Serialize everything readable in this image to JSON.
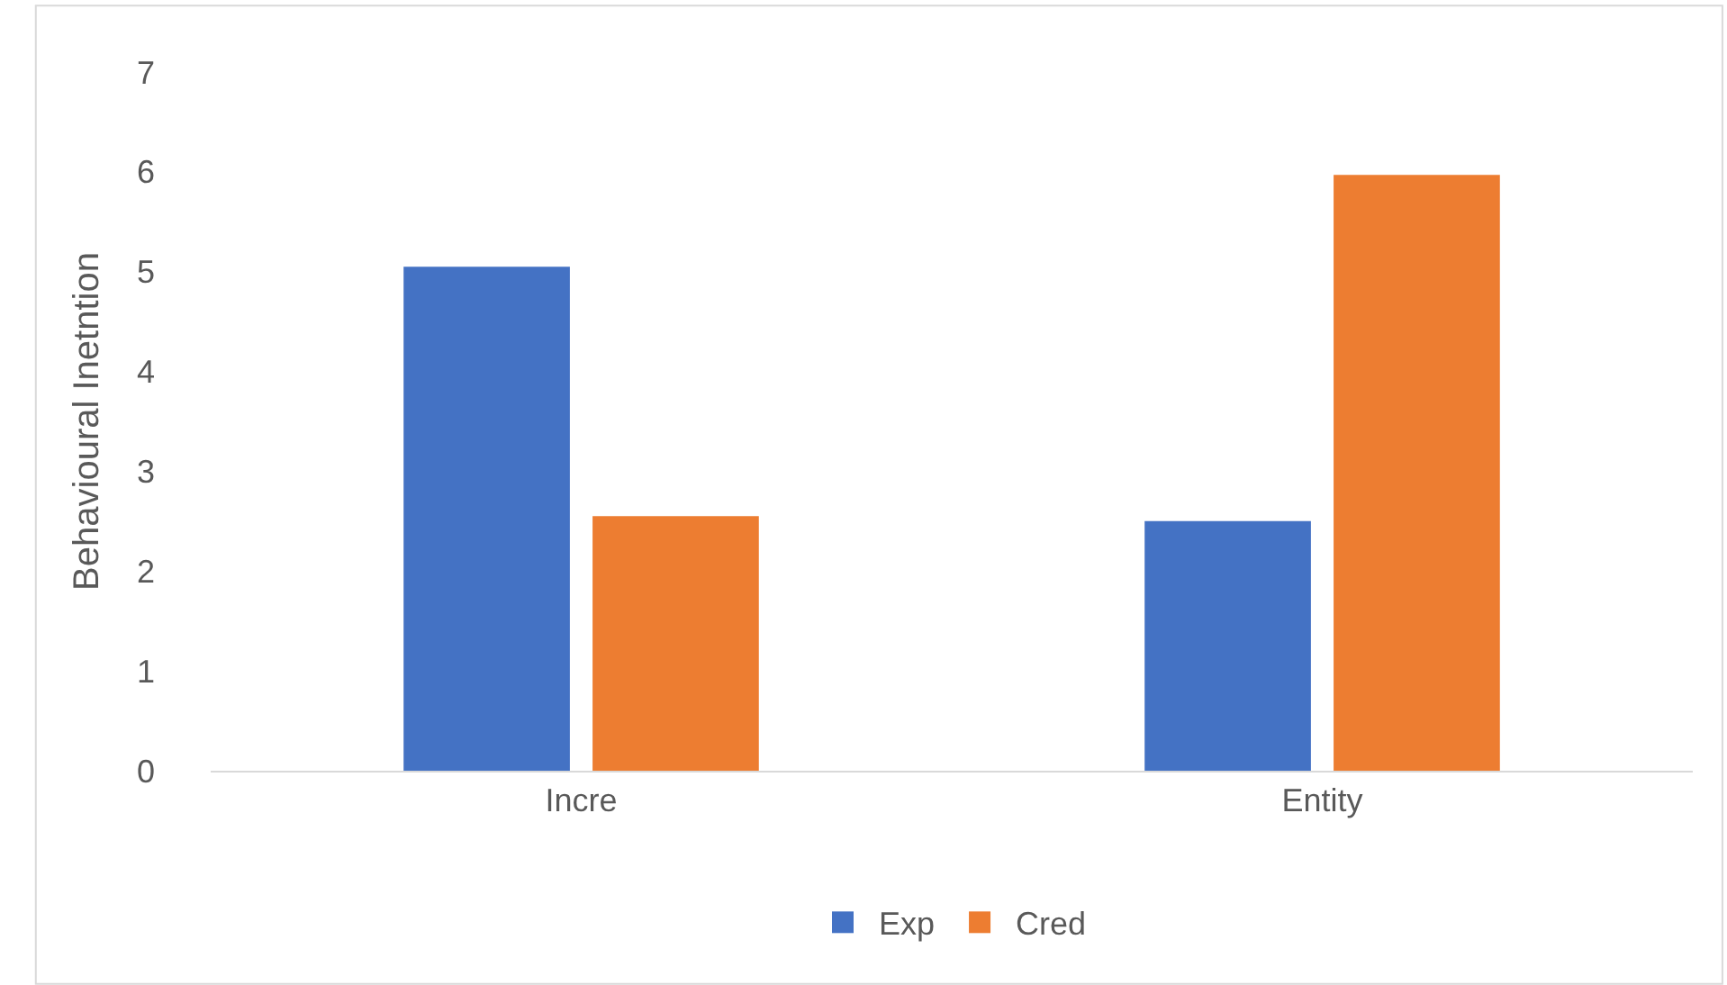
{
  "chart_data": {
    "type": "bar",
    "ylabel": "Behavioural Inetntion",
    "categories": [
      "Incre",
      "Entity"
    ],
    "series": [
      {
        "name": "Exp",
        "color": "#4472c4",
        "values": [
          5.05,
          2.5
        ]
      },
      {
        "name": "Cred",
        "color": "#ed7d31",
        "values": [
          2.55,
          5.97
        ]
      }
    ],
    "ylim": [
      0,
      7
    ],
    "yticks": [
      0,
      1,
      2,
      3,
      4,
      5,
      6,
      7
    ],
    "grid": false,
    "legend": "bottom"
  }
}
